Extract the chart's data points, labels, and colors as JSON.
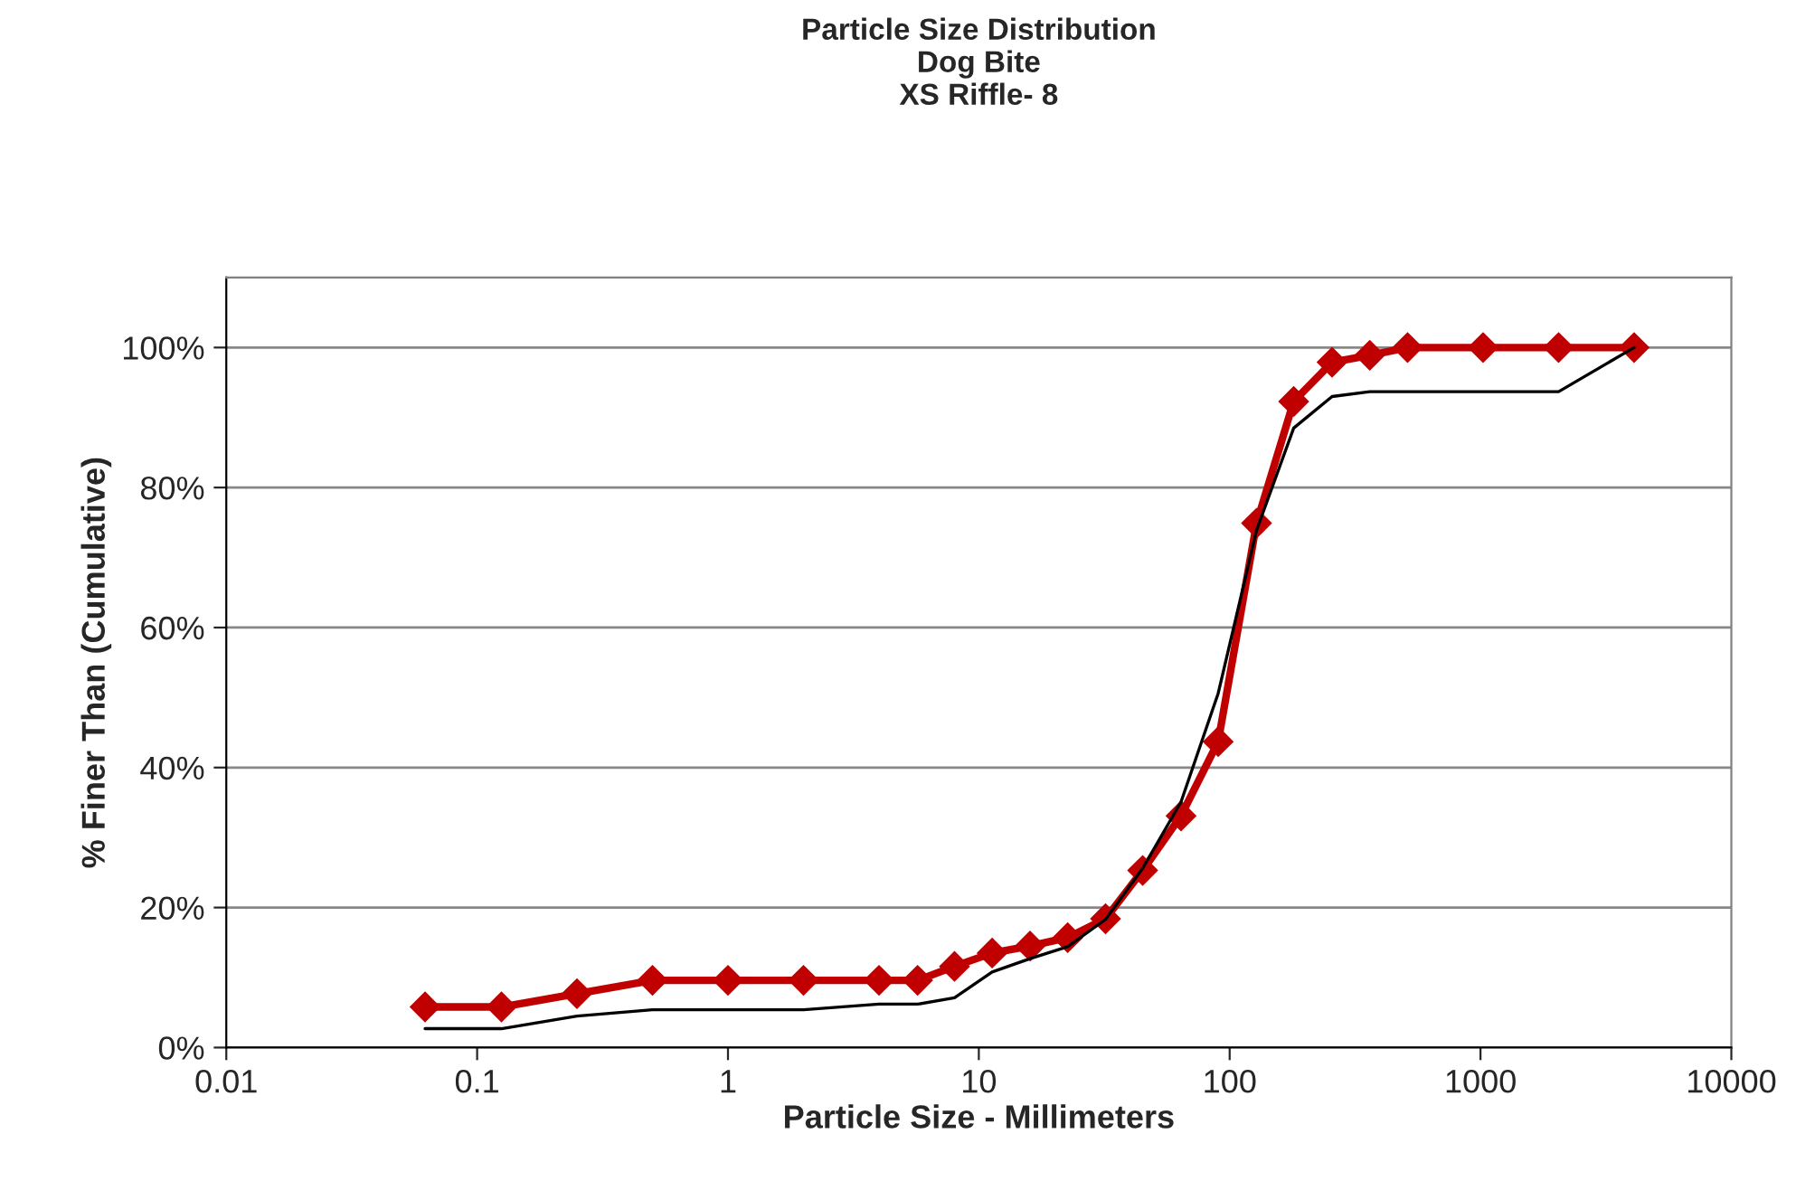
{
  "chart_data": {
    "type": "line",
    "title": "Particle Size Distribution\nDog Bite\nXS Riffle- 8",
    "xlabel": "Particle Size - Millimeters",
    "ylabel": "% Finer Than (Cumulative)",
    "log": "x",
    "grid": "y",
    "legend": false,
    "x": [
      0.062,
      0.125,
      0.25,
      0.5,
      1,
      2,
      4,
      5.7,
      8,
      11.3,
      16,
      22.6,
      32,
      45,
      64,
      90,
      128,
      180,
      256,
      362,
      512,
      1024,
      2048,
      4096
    ],
    "series": [
      {
        "color": "#000000",
        "marker": "none",
        "values": [
          2.7,
          2.7,
          4.5,
          5.4,
          5.4,
          5.4,
          6.2,
          6.2,
          7.1,
          10.8,
          12.7,
          14.4,
          18.3,
          25.6,
          35.1,
          50.6,
          73.9,
          88.5,
          93.0,
          93.7,
          93.7,
          93.7,
          93.7,
          100
        ]
      },
      {
        "color": "#c00000",
        "marker": "diamond",
        "values": [
          5.8,
          5.8,
          7.7,
          9.6,
          9.6,
          9.6,
          9.6,
          9.6,
          11.6,
          13.5,
          14.5,
          15.7,
          18.4,
          25.3,
          33.1,
          43.7,
          74.9,
          92.3,
          97.9,
          98.9,
          100,
          100,
          100,
          100
        ]
      }
    ],
    "xlim": [
      0.01,
      10000
    ],
    "xticks": [
      0.01,
      0.1,
      1,
      10,
      100,
      1000,
      10000
    ],
    "ylim": [
      0,
      110
    ],
    "yticks": [
      {
        "value": 0,
        "label": "0%"
      },
      {
        "value": 20,
        "label": "20%"
      },
      {
        "value": 40,
        "label": "40%"
      },
      {
        "value": 60,
        "label": "60%"
      },
      {
        "value": 80,
        "label": "80%"
      },
      {
        "value": 100,
        "label": "100%"
      }
    ]
  }
}
